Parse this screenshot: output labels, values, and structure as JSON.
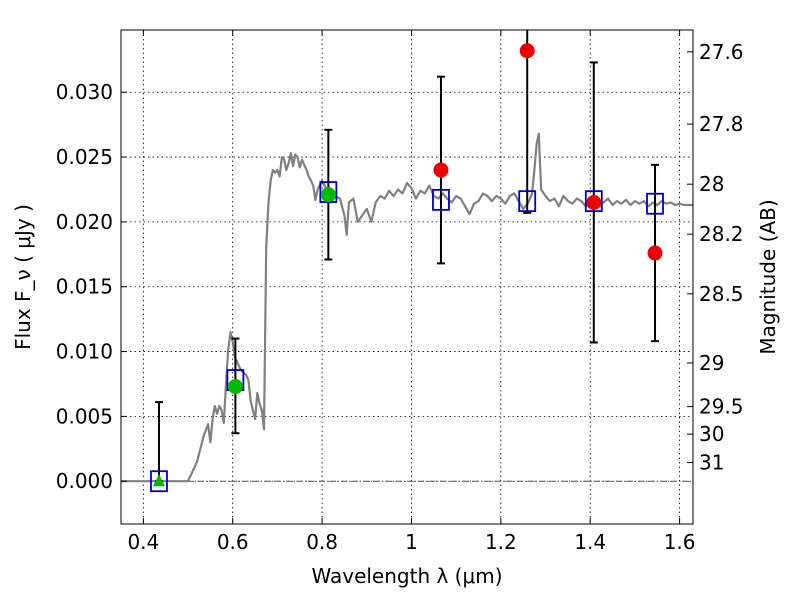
{
  "chart_data": {
    "type": "scatter",
    "xlabel": "Wavelength  λ (μm)",
    "ylabel": "Flux  F_ν  ( μJy )",
    "y2label": "Magnitude (AB)",
    "xlim": [
      0.35,
      1.63
    ],
    "ylim": [
      -0.0033,
      0.0348
    ],
    "grid": true,
    "x_ticks": [
      0.4,
      0.6,
      0.8,
      1.0,
      1.2,
      1.4,
      1.6
    ],
    "x_tick_labels": [
      "0.4",
      "0.6",
      "0.8",
      "1",
      "1.2",
      "1.4",
      "1.6"
    ],
    "y_ticks": [
      0.0,
      0.005,
      0.01,
      0.015,
      0.02,
      0.025,
      0.03
    ],
    "y_tick_labels": [
      "0.000",
      "0.005",
      "0.010",
      "0.015",
      "0.020",
      "0.025",
      "0.030"
    ],
    "y2_ticks": [
      {
        "mag": 27.6,
        "label": "27.6"
      },
      {
        "mag": 27.8,
        "label": "27.8"
      },
      {
        "mag": 28.0,
        "label": "28"
      },
      {
        "mag": 28.2,
        "label": "28.2"
      },
      {
        "mag": 28.5,
        "label": "28.5"
      },
      {
        "mag": 29.0,
        "label": "29"
      },
      {
        "mag": 29.5,
        "label": "29.5"
      },
      {
        "mag": 30.0,
        "label": "30"
      },
      {
        "mag": 31.0,
        "label": "31"
      }
    ],
    "colors": {
      "model": "#808080",
      "model_photometry": "#0000cc",
      "detected": "#00bb00",
      "other": "#ee0000",
      "errorbar": "#000000",
      "zero_line": "#555555"
    },
    "series": [
      {
        "kind": "model_spectrum",
        "points": [
          [
            0.35,
            0.0
          ],
          [
            0.5,
            0.0
          ],
          [
            0.52,
            0.0015
          ],
          [
            0.535,
            0.0035
          ],
          [
            0.545,
            0.0044
          ],
          [
            0.55,
            0.003
          ],
          [
            0.555,
            0.0048
          ],
          [
            0.56,
            0.0058
          ],
          [
            0.565,
            0.0052
          ],
          [
            0.57,
            0.0058
          ],
          [
            0.575,
            0.0055
          ],
          [
            0.58,
            0.0045
          ],
          [
            0.585,
            0.0075
          ],
          [
            0.59,
            0.0102
          ],
          [
            0.595,
            0.0115
          ],
          [
            0.6,
            0.0108
          ],
          [
            0.605,
            0.0095
          ],
          [
            0.61,
            0.0092
          ],
          [
            0.615,
            0.0088
          ],
          [
            0.62,
            0.0085
          ],
          [
            0.63,
            0.0082
          ],
          [
            0.635,
            0.0078
          ],
          [
            0.64,
            0.0062
          ],
          [
            0.645,
            0.0055
          ],
          [
            0.65,
            0.0048
          ],
          [
            0.655,
            0.0068
          ],
          [
            0.66,
            0.006
          ],
          [
            0.665,
            0.0055
          ],
          [
            0.67,
            0.004
          ],
          [
            0.675,
            0.018
          ],
          [
            0.68,
            0.0215
          ],
          [
            0.685,
            0.0232
          ],
          [
            0.69,
            0.024
          ],
          [
            0.695,
            0.0238
          ],
          [
            0.7,
            0.024
          ],
          [
            0.705,
            0.0235
          ],
          [
            0.71,
            0.025
          ],
          [
            0.715,
            0.0248
          ],
          [
            0.72,
            0.024
          ],
          [
            0.725,
            0.0245
          ],
          [
            0.73,
            0.0253
          ],
          [
            0.735,
            0.0243
          ],
          [
            0.74,
            0.0252
          ],
          [
            0.745,
            0.025
          ],
          [
            0.75,
            0.0242
          ],
          [
            0.755,
            0.0248
          ],
          [
            0.76,
            0.0244
          ],
          [
            0.765,
            0.024
          ],
          [
            0.77,
            0.0235
          ],
          [
            0.775,
            0.0232
          ],
          [
            0.78,
            0.0228
          ],
          [
            0.785,
            0.0217
          ],
          [
            0.79,
            0.0225
          ],
          [
            0.8,
            0.0232
          ],
          [
            0.81,
            0.0225
          ],
          [
            0.82,
            0.0215
          ],
          [
            0.83,
            0.022
          ],
          [
            0.84,
            0.0218
          ],
          [
            0.85,
            0.0205
          ],
          [
            0.855,
            0.019
          ],
          [
            0.86,
            0.0215
          ],
          [
            0.87,
            0.0218
          ],
          [
            0.88,
            0.02
          ],
          [
            0.89,
            0.0205
          ],
          [
            0.9,
            0.021
          ],
          [
            0.91,
            0.02
          ],
          [
            0.92,
            0.0215
          ],
          [
            0.93,
            0.022
          ],
          [
            0.94,
            0.0218
          ],
          [
            0.95,
            0.0224
          ],
          [
            0.96,
            0.022
          ],
          [
            0.97,
            0.0225
          ],
          [
            0.98,
            0.0222
          ],
          [
            0.99,
            0.023
          ],
          [
            1.0,
            0.0226
          ],
          [
            1.01,
            0.0218
          ],
          [
            1.02,
            0.0224
          ],
          [
            1.03,
            0.0222
          ],
          [
            1.04,
            0.0228
          ],
          [
            1.05,
            0.022
          ],
          [
            1.06,
            0.0218
          ],
          [
            1.07,
            0.0222
          ],
          [
            1.08,
            0.0218
          ],
          [
            1.09,
            0.0215
          ],
          [
            1.1,
            0.022
          ],
          [
            1.11,
            0.0218
          ],
          [
            1.12,
            0.0212
          ],
          [
            1.13,
            0.0206
          ],
          [
            1.14,
            0.0214
          ],
          [
            1.15,
            0.0216
          ],
          [
            1.16,
            0.0222
          ],
          [
            1.17,
            0.022
          ],
          [
            1.18,
            0.0216
          ],
          [
            1.19,
            0.022
          ],
          [
            1.2,
            0.0218
          ],
          [
            1.21,
            0.0214
          ],
          [
            1.22,
            0.022
          ],
          [
            1.23,
            0.0222
          ],
          [
            1.24,
            0.0216
          ],
          [
            1.25,
            0.021
          ],
          [
            1.26,
            0.0214
          ],
          [
            1.27,
            0.0222
          ],
          [
            1.275,
            0.024
          ],
          [
            1.28,
            0.026
          ],
          [
            1.285,
            0.0268
          ],
          [
            1.29,
            0.0225
          ],
          [
            1.3,
            0.022
          ],
          [
            1.31,
            0.0216
          ],
          [
            1.32,
            0.0218
          ],
          [
            1.33,
            0.0212
          ],
          [
            1.34,
            0.022
          ],
          [
            1.35,
            0.0216
          ],
          [
            1.36,
            0.0214
          ],
          [
            1.37,
            0.0218
          ],
          [
            1.38,
            0.0216
          ],
          [
            1.39,
            0.0212
          ],
          [
            1.4,
            0.0216
          ],
          [
            1.41,
            0.0218
          ],
          [
            1.42,
            0.0212
          ],
          [
            1.43,
            0.0215
          ],
          [
            1.44,
            0.0218
          ],
          [
            1.45,
            0.0213
          ],
          [
            1.46,
            0.0216
          ],
          [
            1.47,
            0.0214
          ],
          [
            1.48,
            0.0217
          ],
          [
            1.49,
            0.0213
          ],
          [
            1.5,
            0.0216
          ],
          [
            1.51,
            0.0214
          ],
          [
            1.52,
            0.0216
          ],
          [
            1.53,
            0.0212
          ],
          [
            1.54,
            0.0215
          ],
          [
            1.55,
            0.0213
          ],
          [
            1.56,
            0.0216
          ],
          [
            1.57,
            0.0214
          ],
          [
            1.58,
            0.0215
          ],
          [
            1.59,
            0.0213
          ],
          [
            1.6,
            0.0214
          ],
          [
            1.61,
            0.0213
          ],
          [
            1.63,
            0.0213
          ]
        ]
      },
      {
        "kind": "model_photometry",
        "marker": "square",
        "points": [
          [
            0.435,
            0.0
          ],
          [
            0.606,
            0.0078
          ],
          [
            0.814,
            0.0223
          ],
          [
            1.066,
            0.0217
          ],
          [
            1.259,
            0.0216
          ],
          [
            1.408,
            0.0216
          ],
          [
            1.545,
            0.0214
          ]
        ]
      },
      {
        "kind": "detected",
        "marker": "circle",
        "points": [
          {
            "x": 0.606,
            "y": 0.0073,
            "err": [
              0.0037,
              0.011
            ]
          },
          {
            "x": 0.814,
            "y": 0.0221,
            "err": [
              0.0171,
              0.0271
            ]
          }
        ]
      },
      {
        "kind": "upper_limit",
        "marker": "triangle",
        "points": [
          {
            "x": 0.435,
            "y": 0.0,
            "err": [
              0.0,
              0.0061
            ]
          }
        ]
      },
      {
        "kind": "other",
        "marker": "circle",
        "points": [
          {
            "x": 1.066,
            "y": 0.024,
            "err": [
              0.0168,
              0.0312
            ]
          },
          {
            "x": 1.259,
            "y": 0.0332,
            "err": [
              0.0207,
              0.0348
            ]
          },
          {
            "x": 1.408,
            "y": 0.0215,
            "err": [
              0.0107,
              0.0323
            ]
          },
          {
            "x": 1.545,
            "y": 0.0176,
            "err": [
              0.0108,
              0.0244
            ]
          }
        ]
      }
    ]
  }
}
